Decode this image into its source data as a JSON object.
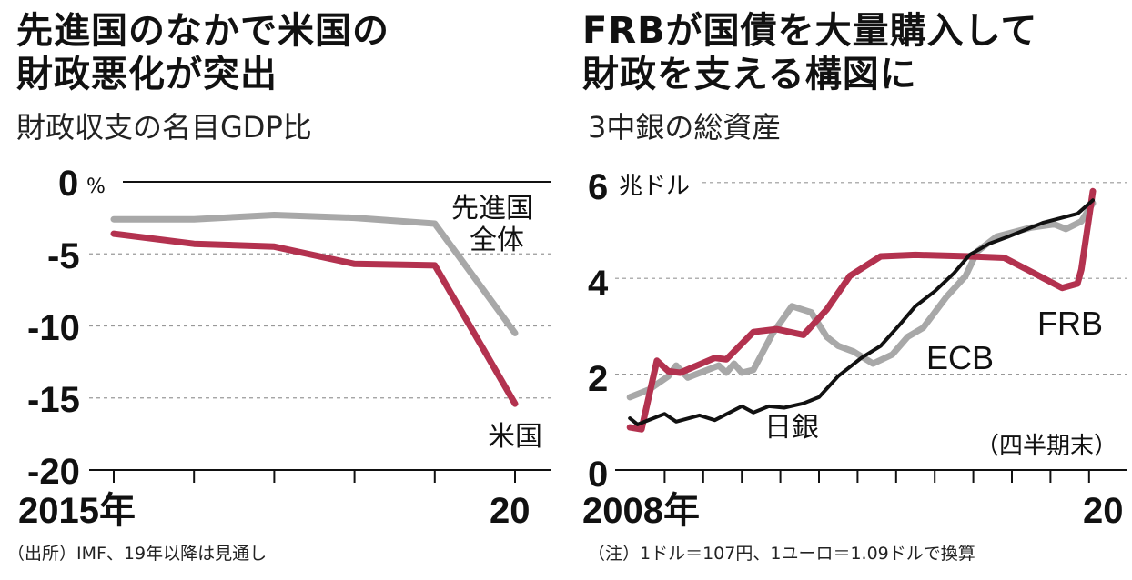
{
  "chart_data": [
    {
      "type": "line",
      "title": "先進国のなかで米国の財政悪化が突出",
      "title_lines": [
        "先進国のなかで米国の",
        "財政悪化が突出"
      ],
      "subtitle": "財政収支の名目GDP比",
      "y_unit": "%",
      "ylim": [
        -20,
        0
      ],
      "y_ticks": [
        0,
        -5,
        -10,
        -15,
        -20
      ],
      "y_tick_labels": [
        "0",
        "-5",
        "-10",
        "-15",
        "-20"
      ],
      "x_tick_labels": [
        "2015年",
        "20"
      ],
      "x": [
        2015,
        2016,
        2017,
        2018,
        2019,
        2020
      ],
      "grid": "dashed horizontal",
      "series": [
        {
          "name": "先進国全体",
          "name_lines": [
            "先進国",
            "全体"
          ],
          "color": "#a8a8a8",
          "values": [
            -2.6,
            -2.6,
            -2.3,
            -2.5,
            -2.9,
            -10.5
          ]
        },
        {
          "name": "米国",
          "color": "#b3324f",
          "values": [
            -3.6,
            -4.3,
            -4.5,
            -5.7,
            -5.8,
            -15.4
          ]
        }
      ],
      "source": "（出所）IMF、19年以降は見通し"
    },
    {
      "type": "line",
      "title": "FRBが国債を大量購入して財政を支える構図に",
      "title_lines": [
        "FRBが国債を大量購入して",
        "財政を支える構図に"
      ],
      "subtitle": "3中銀の総資産",
      "y_unit": "兆ドル",
      "ylim": [
        0,
        6
      ],
      "y_ticks": [
        0,
        2,
        4,
        6
      ],
      "y_tick_labels": [
        "0",
        "2",
        "4",
        "6"
      ],
      "x_tick_labels": [
        "2008年",
        "20"
      ],
      "xlim": [
        2008,
        2020
      ],
      "grid": "dashed horizontal",
      "annotation": "（四半期末）",
      "series": [
        {
          "name": "ECB",
          "color": "#a8a8a8",
          "points": [
            [
              2008.1,
              1.52
            ],
            [
              2008.6,
              1.68
            ],
            [
              2009.1,
              1.96
            ],
            [
              2009.3,
              2.18
            ],
            [
              2009.6,
              1.93
            ],
            [
              2010.4,
              2.18
            ],
            [
              2010.6,
              2.03
            ],
            [
              2010.8,
              2.22
            ],
            [
              2011.0,
              2.03
            ],
            [
              2011.3,
              2.09
            ],
            [
              2011.8,
              2.85
            ],
            [
              2012.3,
              3.42
            ],
            [
              2012.8,
              3.29
            ],
            [
              2013.2,
              2.78
            ],
            [
              2013.5,
              2.59
            ],
            [
              2013.9,
              2.47
            ],
            [
              2014.4,
              2.22
            ],
            [
              2014.9,
              2.41
            ],
            [
              2015.3,
              2.78
            ],
            [
              2015.7,
              2.97
            ],
            [
              2016.3,
              3.61
            ],
            [
              2016.8,
              4.05
            ],
            [
              2017.1,
              4.56
            ],
            [
              2017.6,
              4.87
            ],
            [
              2018.5,
              5.06
            ],
            [
              2019.1,
              5.13
            ],
            [
              2019.4,
              5.03
            ],
            [
              2019.8,
              5.19
            ],
            [
              2020.1,
              5.57
            ]
          ]
        },
        {
          "name": "FRB",
          "color": "#b3324f",
          "points": [
            [
              2008.1,
              0.89
            ],
            [
              2008.4,
              0.85
            ],
            [
              2008.8,
              2.28
            ],
            [
              2009.1,
              2.06
            ],
            [
              2009.4,
              2.03
            ],
            [
              2010.3,
              2.34
            ],
            [
              2010.6,
              2.31
            ],
            [
              2011.3,
              2.88
            ],
            [
              2011.9,
              2.94
            ],
            [
              2012.6,
              2.82
            ],
            [
              2013.2,
              3.35
            ],
            [
              2013.8,
              4.05
            ],
            [
              2014.6,
              4.46
            ],
            [
              2015.5,
              4.49
            ],
            [
              2016.9,
              4.46
            ],
            [
              2017.8,
              4.43
            ],
            [
              2018.4,
              4.18
            ],
            [
              2019.3,
              3.8
            ],
            [
              2019.7,
              3.89
            ],
            [
              2019.8,
              4.18
            ],
            [
              2020.1,
              5.82
            ]
          ]
        },
        {
          "name": "日銀",
          "color": "#111111",
          "points": [
            [
              2008.1,
              1.08
            ],
            [
              2008.3,
              0.95
            ],
            [
              2008.9,
              1.14
            ],
            [
              2009.0,
              1.17
            ],
            [
              2009.3,
              1.01
            ],
            [
              2009.9,
              1.14
            ],
            [
              2010.3,
              1.04
            ],
            [
              2011.0,
              1.33
            ],
            [
              2011.3,
              1.2
            ],
            [
              2011.7,
              1.33
            ],
            [
              2012.1,
              1.3
            ],
            [
              2012.6,
              1.39
            ],
            [
              2013.0,
              1.52
            ],
            [
              2013.5,
              1.96
            ],
            [
              2014.1,
              2.34
            ],
            [
              2014.6,
              2.59
            ],
            [
              2015.1,
              3.04
            ],
            [
              2015.5,
              3.42
            ],
            [
              2016.0,
              3.73
            ],
            [
              2016.5,
              4.11
            ],
            [
              2016.9,
              4.49
            ],
            [
              2017.4,
              4.72
            ],
            [
              2017.9,
              4.87
            ],
            [
              2018.8,
              5.16
            ],
            [
              2019.7,
              5.35
            ],
            [
              2020.1,
              5.63
            ]
          ]
        }
      ],
      "note": "（注）1ドル＝107円、1ユーロ＝1.09ドルで換算"
    }
  ]
}
